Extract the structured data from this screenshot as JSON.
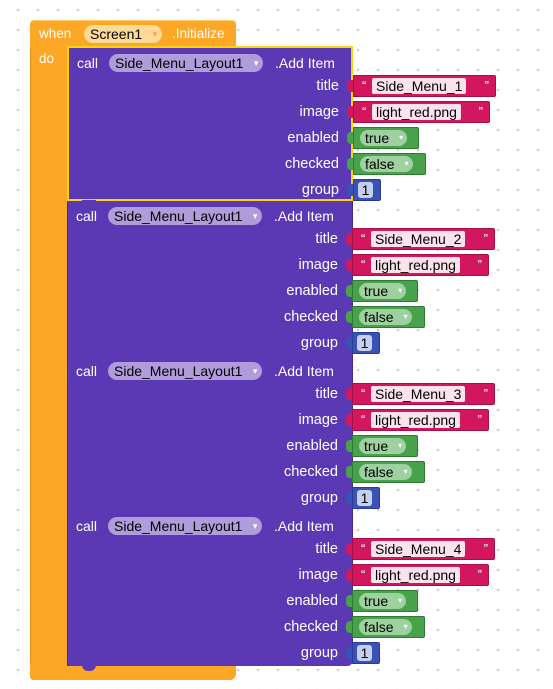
{
  "event": {
    "when_label": "when",
    "component": "Screen1",
    "event_name": ".Initialize",
    "do_label": "do"
  },
  "calls": [
    {
      "call_label": "call",
      "component": "Side_Menu_Layout1",
      "method": ".Add Item",
      "params": [
        {
          "name": "title",
          "type": "text",
          "value": "Side_Menu_1"
        },
        {
          "name": "image",
          "type": "text",
          "value": "light_red.png"
        },
        {
          "name": "enabled",
          "type": "logic",
          "value": "true"
        },
        {
          "name": "checked",
          "type": "logic",
          "value": "false"
        },
        {
          "name": "group",
          "type": "number",
          "value": "1"
        }
      ]
    },
    {
      "call_label": "call",
      "component": "Side_Menu_Layout1",
      "method": ".Add Item",
      "params": [
        {
          "name": "title",
          "type": "text",
          "value": "Side_Menu_2"
        },
        {
          "name": "image",
          "type": "text",
          "value": "light_red.png"
        },
        {
          "name": "enabled",
          "type": "logic",
          "value": "true"
        },
        {
          "name": "checked",
          "type": "logic",
          "value": "false"
        },
        {
          "name": "group",
          "type": "number",
          "value": "1"
        }
      ]
    },
    {
      "call_label": "call",
      "component": "Side_Menu_Layout1",
      "method": ".Add Item",
      "params": [
        {
          "name": "title",
          "type": "text",
          "value": "Side_Menu_3"
        },
        {
          "name": "image",
          "type": "text",
          "value": "light_red.png"
        },
        {
          "name": "enabled",
          "type": "logic",
          "value": "true"
        },
        {
          "name": "checked",
          "type": "logic",
          "value": "false"
        },
        {
          "name": "group",
          "type": "number",
          "value": "1"
        }
      ]
    },
    {
      "call_label": "call",
      "component": "Side_Menu_Layout1",
      "method": ".Add Item",
      "params": [
        {
          "name": "title",
          "type": "text",
          "value": "Side_Menu_4"
        },
        {
          "name": "image",
          "type": "text",
          "value": "light_red.png"
        },
        {
          "name": "enabled",
          "type": "logic",
          "value": "true"
        },
        {
          "name": "checked",
          "type": "logic",
          "value": "false"
        },
        {
          "name": "group",
          "type": "number",
          "value": "1"
        }
      ]
    }
  ],
  "glyphs": {
    "dropdown_arrow": "▾",
    "quote_open": "“",
    "quote_close": "”"
  },
  "colors": {
    "event": "#FDA726",
    "procedure_call": "#5B39B4",
    "text": "#D2175F",
    "logic": "#47A24B",
    "math": "#3A52B5",
    "selected_outline": "#FDD400"
  }
}
